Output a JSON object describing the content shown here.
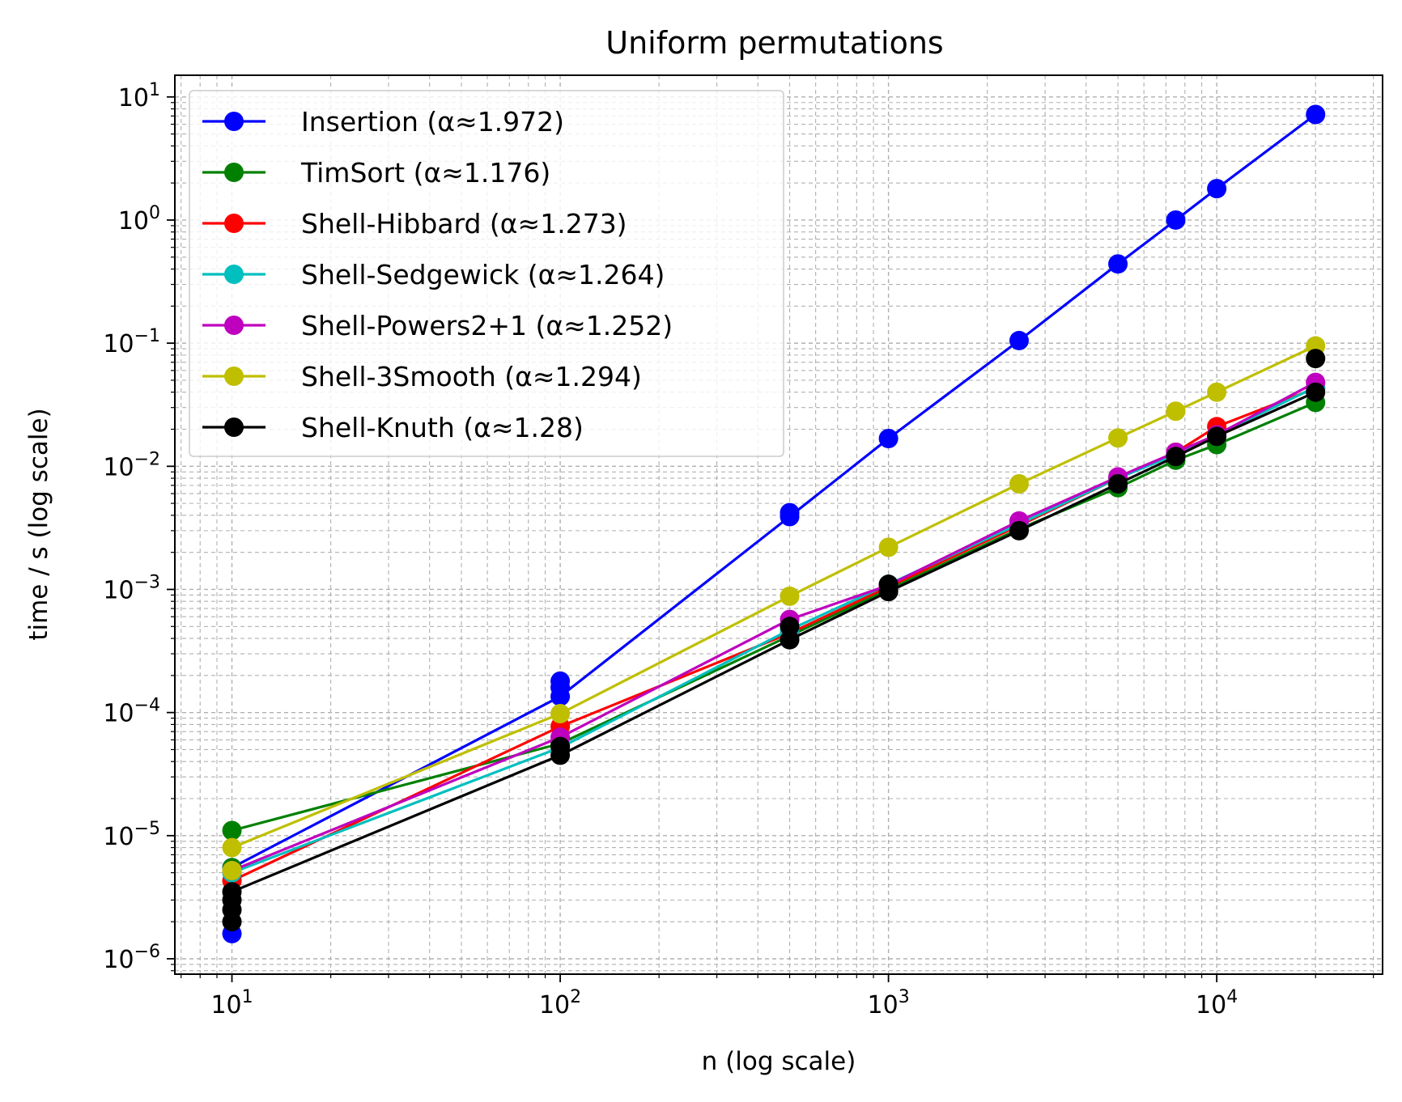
{
  "chart_data": {
    "type": "line",
    "title": "Uniform permutations",
    "xlabel": "n (log scale)",
    "ylabel": "time / s (log scale)",
    "xscale": "log",
    "yscale": "log",
    "xlim": [
      6.7,
      32000
    ],
    "ylim": [
      7.5e-07,
      15
    ],
    "grid": true,
    "legend_position": "top-left",
    "x_ticks": [
      {
        "value": 10,
        "base": "10",
        "exp": "1"
      },
      {
        "value": 100,
        "base": "10",
        "exp": "2"
      },
      {
        "value": 1000,
        "base": "10",
        "exp": "3"
      },
      {
        "value": 10000,
        "base": "10",
        "exp": "4"
      }
    ],
    "y_ticks": [
      {
        "value": 1e-06,
        "base": "10",
        "exp": "−6"
      },
      {
        "value": 1e-05,
        "base": "10",
        "exp": "−5"
      },
      {
        "value": 0.0001,
        "base": "10",
        "exp": "−4"
      },
      {
        "value": 0.001,
        "base": "10",
        "exp": "−3"
      },
      {
        "value": 0.01,
        "base": "10",
        "exp": "−2"
      },
      {
        "value": 0.1,
        "base": "10",
        "exp": "−1"
      },
      {
        "value": 1,
        "base": "10",
        "exp": "0"
      },
      {
        "value": 10,
        "base": "10",
        "exp": "1"
      }
    ],
    "x": [
      10,
      100,
      500,
      1000,
      2500,
      5000,
      7500,
      10000,
      20000
    ],
    "series": [
      {
        "name": "Insertion (α≈1.972)",
        "color": "#0000ff",
        "values": [
          5.5e-06,
          0.000135,
          0.0039,
          0.0168,
          0.105,
          0.44,
          1.0,
          1.8,
          7.2
        ],
        "extra_points": [
          [
            10,
            1.6e-06
          ],
          [
            100,
            0.00018
          ],
          [
            100,
            0.00016
          ],
          [
            500,
            0.0042
          ]
        ]
      },
      {
        "name": "TimSort (α≈1.176)",
        "color": "#008000",
        "values": [
          1.1e-05,
          5.6e-05,
          0.00042,
          0.001,
          0.0031,
          0.0067,
          0.0112,
          0.015,
          0.033
        ],
        "extra_points": [
          [
            10,
            5.5e-06
          ]
        ]
      },
      {
        "name": "Shell-Hibbard (α≈1.273)",
        "color": "#ff0000",
        "values": [
          4.3e-06,
          7.7e-05,
          0.00044,
          0.00105,
          0.0033,
          0.008,
          0.013,
          0.021,
          0.043
        ],
        "extra_points": []
      },
      {
        "name": "Shell-Sedgewick (α≈1.264)",
        "color": "#00bfbf",
        "values": [
          5e-06,
          5.2e-05,
          0.00047,
          0.0011,
          0.0034,
          0.008,
          0.0125,
          0.018,
          0.044
        ],
        "extra_points": []
      },
      {
        "name": "Shell-Powers2+1 (α≈1.252)",
        "color": "#bf00bf",
        "values": [
          5.2e-06,
          6.3e-05,
          0.00057,
          0.00108,
          0.0036,
          0.0082,
          0.013,
          0.018,
          0.048
        ],
        "extra_points": []
      },
      {
        "name": "Shell-3Smooth (α≈1.294)",
        "color": "#bfbf00",
        "values": [
          8e-06,
          9.8e-05,
          0.00088,
          0.0022,
          0.0072,
          0.017,
          0.028,
          0.04,
          0.095
        ],
        "extra_points": [
          [
            10,
            5.2e-06
          ]
        ]
      },
      {
        "name": "Shell-Knuth (α≈1.28)",
        "color": "#000000",
        "values": [
          3.5e-06,
          4.5e-05,
          0.00039,
          0.00096,
          0.003,
          0.0072,
          0.012,
          0.0175,
          0.04
        ],
        "extra_points": [
          [
            10,
            2e-06
          ],
          [
            10,
            2.5e-06
          ],
          [
            10,
            3e-06
          ],
          [
            100,
            5.3e-05
          ],
          [
            500,
            0.0005
          ],
          [
            1000,
            0.0011
          ],
          [
            20000,
            0.075
          ]
        ]
      }
    ]
  }
}
